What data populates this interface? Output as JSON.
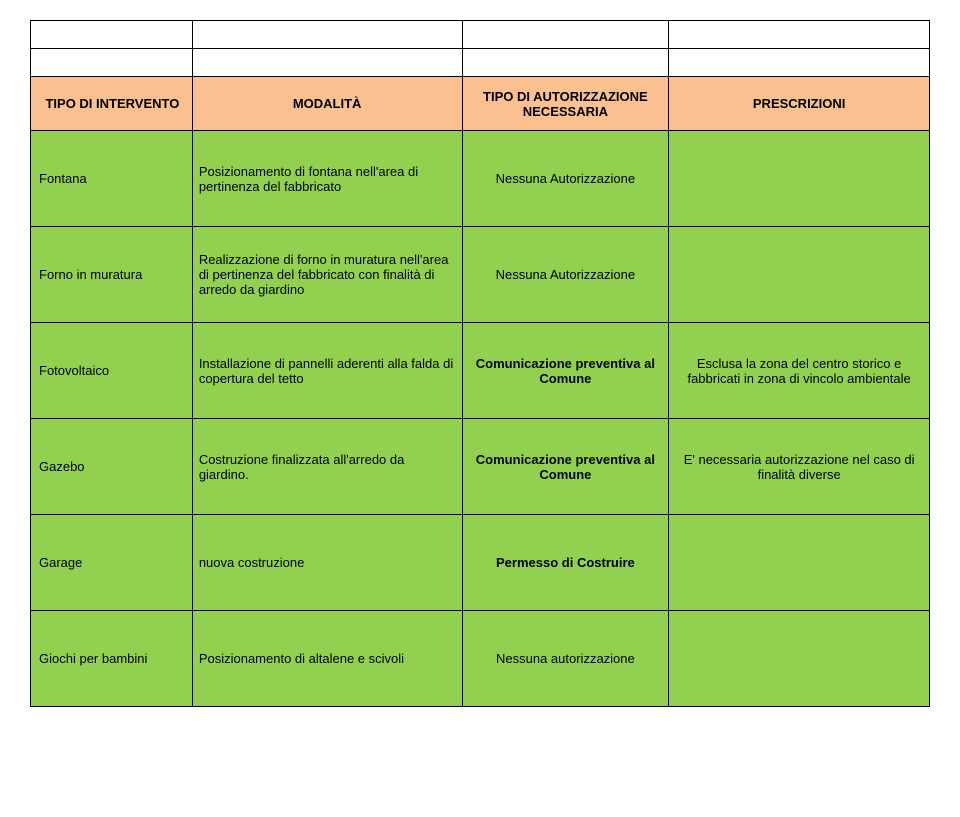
{
  "header": {
    "col1": "TIPO DI INTERVENTO",
    "col2": "MODALITÀ",
    "col3": "TIPO DI AUTORIZZAZIONE NECESSARIA",
    "col4": "PRESCRIZIONI"
  },
  "rows": [
    {
      "c1": "Fontana",
      "c2": "Posizionamento di fontana nell'area di pertinenza del fabbricato",
      "c3": "Nessuna Autorizzazione",
      "c3bold": false,
      "c4": ""
    },
    {
      "c1": "Forno in muratura",
      "c2": "Realizzazione di forno in muratura nell'area di pertinenza del fabbricato con finalità di arredo da giardino",
      "c3": "Nessuna Autorizzazione",
      "c3bold": false,
      "c4": ""
    },
    {
      "c1": "Fotovoltaico",
      "c2": "Installazione di pannelli aderenti alla falda di copertura del tetto",
      "c3": "Comunicazione preventiva al Comune",
      "c3bold": true,
      "c4": "Esclusa la zona del centro storico e fabbricati in zona di vincolo ambientale"
    },
    {
      "c1": "Gazebo",
      "c2": "Costruzione finalizzata all'arredo da giardino.",
      "c3": "Comunicazione preventiva al Comune",
      "c3bold": true,
      "c4": "E' necessaria autorizzazione nel caso di finalità diverse"
    },
    {
      "c1": "Garage",
      "c2": "nuova costruzione",
      "c3": "Permesso di Costruire",
      "c3bold": true,
      "c4": ""
    },
    {
      "c1": "Giochi per bambini",
      "c2": "Posizionamento di altalene e scivoli",
      "c3": "Nessuna autorizzazione",
      "c3bold": false,
      "c4": ""
    }
  ],
  "style": {
    "header_bg": "#fac090",
    "row_bg": "#92d050",
    "border_color": "#000000",
    "font_family": "Arial",
    "header_fontsize": 13,
    "body_fontsize": 13
  }
}
